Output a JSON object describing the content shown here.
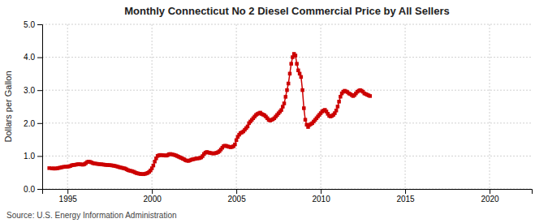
{
  "chart_data": {
    "type": "line",
    "title": "Monthly Connecticut No 2 Diesel Commercial Price by All Sellers",
    "ylabel": "Dollars per Gallon",
    "annotation": "Source: U.S. Energy Information Administration",
    "color": "#cc0000",
    "marker": "square",
    "grid": true,
    "xlim": [
      1993.5,
      2022.5
    ],
    "ylim": [
      0.0,
      5.0
    ],
    "xticks": [
      1995,
      2000,
      2005,
      2010,
      2015,
      2020
    ],
    "yticks": [
      {
        "value": 0.0,
        "label": "0.0"
      },
      {
        "value": 1.0,
        "label": "1.0"
      },
      {
        "value": 2.0,
        "label": "2.0"
      },
      {
        "value": 3.0,
        "label": "3.0"
      },
      {
        "value": 4.0,
        "label": "4.0"
      },
      {
        "value": 5.0,
        "label": "5.0"
      }
    ],
    "x": [
      1993.917,
      1994.083,
      1994.167,
      1994.25,
      1994.333,
      1994.417,
      1994.5,
      1994.583,
      1994.667,
      1994.75,
      1994.833,
      1994.917,
      1995.0,
      1995.083,
      1995.167,
      1995.25,
      1995.333,
      1995.417,
      1995.5,
      1995.583,
      1995.667,
      1995.75,
      1995.833,
      1995.917,
      1996.0,
      1996.083,
      1996.167,
      1996.25,
      1996.333,
      1996.417,
      1996.5,
      1996.583,
      1996.667,
      1996.75,
      1996.833,
      1996.917,
      1997.0,
      1997.083,
      1997.167,
      1997.25,
      1997.333,
      1997.417,
      1997.5,
      1997.583,
      1997.667,
      1997.75,
      1997.833,
      1997.917,
      1998.0,
      1998.083,
      1998.167,
      1998.25,
      1998.333,
      1998.417,
      1998.5,
      1998.583,
      1998.667,
      1998.75,
      1998.833,
      1998.917,
      1999.0,
      1999.083,
      1999.167,
      1999.25,
      1999.333,
      1999.417,
      1999.5,
      1999.583,
      1999.667,
      1999.75,
      1999.833,
      1999.917,
      2000.0,
      2000.083,
      2000.167,
      2000.25,
      2000.333,
      2000.417,
      2000.5,
      2000.583,
      2000.667,
      2000.75,
      2000.833,
      2000.917,
      2001.0,
      2001.083,
      2001.167,
      2001.25,
      2001.333,
      2001.417,
      2001.5,
      2001.583,
      2001.667,
      2001.75,
      2001.833,
      2001.917,
      2002.0,
      2002.083,
      2002.167,
      2002.25,
      2002.333,
      2002.417,
      2002.5,
      2002.583,
      2002.667,
      2002.75,
      2002.833,
      2002.917,
      2003.0,
      2003.083,
      2003.167,
      2003.25,
      2003.333,
      2003.417,
      2003.5,
      2003.583,
      2003.667,
      2003.75,
      2003.833,
      2003.917,
      2004.0,
      2004.083,
      2004.167,
      2004.25,
      2004.333,
      2004.417,
      2004.5,
      2004.583,
      2004.667,
      2004.75,
      2004.833,
      2004.917,
      2005.0,
      2005.083,
      2005.167,
      2005.25,
      2005.333,
      2005.417,
      2005.5,
      2005.583,
      2005.667,
      2005.75,
      2005.833,
      2005.917,
      2006.0,
      2006.083,
      2006.167,
      2006.25,
      2006.333,
      2006.417,
      2006.5,
      2006.583,
      2006.667,
      2006.75,
      2006.833,
      2006.917,
      2007.0,
      2007.083,
      2007.167,
      2007.25,
      2007.333,
      2007.417,
      2007.5,
      2007.583,
      2007.667,
      2007.75,
      2007.833,
      2007.917,
      2008.0,
      2008.083,
      2008.167,
      2008.25,
      2008.333,
      2008.417,
      2008.5,
      2008.583,
      2008.667,
      2008.75,
      2008.833,
      2008.917,
      2009.0,
      2009.083,
      2009.167,
      2009.25,
      2009.333,
      2009.417,
      2009.5,
      2009.583,
      2009.667,
      2009.75,
      2009.833,
      2009.917,
      2010.0,
      2010.083,
      2010.167,
      2010.25,
      2010.333,
      2010.417,
      2010.5,
      2010.583,
      2010.667,
      2010.75,
      2010.833,
      2010.917,
      2011.0,
      2011.083,
      2011.167,
      2011.25,
      2011.333,
      2011.417,
      2011.5,
      2011.583,
      2011.667,
      2011.75,
      2011.833,
      2011.917,
      2012.0,
      2012.083,
      2012.167,
      2012.25,
      2012.333,
      2012.417,
      2012.5,
      2012.583,
      2012.667,
      2012.75,
      2012.833,
      2012.917
    ],
    "values": [
      0.632,
      0.625,
      0.62,
      0.618,
      0.622,
      0.63,
      0.64,
      0.648,
      0.66,
      0.668,
      0.672,
      0.675,
      0.678,
      0.685,
      0.698,
      0.718,
      0.728,
      0.732,
      0.738,
      0.748,
      0.752,
      0.748,
      0.742,
      0.738,
      0.752,
      0.782,
      0.818,
      0.828,
      0.822,
      0.805,
      0.785,
      0.772,
      0.768,
      0.762,
      0.758,
      0.752,
      0.748,
      0.742,
      0.738,
      0.732,
      0.728,
      0.725,
      0.722,
      0.718,
      0.712,
      0.705,
      0.695,
      0.685,
      0.672,
      0.658,
      0.648,
      0.638,
      0.628,
      0.618,
      0.595,
      0.572,
      0.558,
      0.548,
      0.538,
      0.522,
      0.502,
      0.482,
      0.472,
      0.462,
      0.455,
      0.45,
      0.448,
      0.458,
      0.47,
      0.488,
      0.518,
      0.562,
      0.628,
      0.712,
      0.832,
      0.928,
      1.002,
      1.022,
      1.032,
      1.028,
      1.022,
      1.018,
      1.012,
      1.022,
      1.052,
      1.062,
      1.052,
      1.042,
      1.032,
      1.018,
      0.998,
      0.978,
      0.958,
      0.938,
      0.918,
      0.898,
      0.868,
      0.858,
      0.852,
      0.868,
      0.888,
      0.898,
      0.908,
      0.918,
      0.928,
      0.932,
      0.938,
      0.958,
      0.998,
      1.062,
      1.102,
      1.122,
      1.108,
      1.098,
      1.088,
      1.082,
      1.078,
      1.088,
      1.098,
      1.118,
      1.148,
      1.198,
      1.252,
      1.302,
      1.312,
      1.305,
      1.288,
      1.278,
      1.268,
      1.278,
      1.298,
      1.352,
      1.482,
      1.582,
      1.648,
      1.698,
      1.718,
      1.748,
      1.798,
      1.848,
      1.898,
      1.998,
      2.048,
      2.098,
      2.148,
      2.198,
      2.248,
      2.278,
      2.298,
      2.318,
      2.278,
      2.258,
      2.238,
      2.198,
      2.148,
      2.098,
      2.078,
      2.098,
      2.118,
      2.148,
      2.198,
      2.248,
      2.298,
      2.348,
      2.398,
      2.498,
      2.598,
      2.798,
      3.002,
      3.202,
      3.502,
      3.802,
      4.002,
      4.102,
      4.052,
      3.802,
      3.602,
      3.502,
      3.402,
      3.002,
      2.452,
      2.102,
      1.952,
      1.882,
      1.942,
      1.972,
      1.998,
      2.048,
      2.098,
      2.148,
      2.202,
      2.252,
      2.302,
      2.352,
      2.382,
      2.402,
      2.352,
      2.282,
      2.222,
      2.202,
      2.222,
      2.252,
      2.302,
      2.382,
      2.502,
      2.652,
      2.802,
      2.902,
      2.952,
      2.982,
      2.962,
      2.942,
      2.902,
      2.882,
      2.852,
      2.822,
      2.852,
      2.902,
      2.952,
      2.982,
      3.002,
      2.982,
      2.952,
      2.902,
      2.882,
      2.862,
      2.842,
      2.822
    ]
  }
}
